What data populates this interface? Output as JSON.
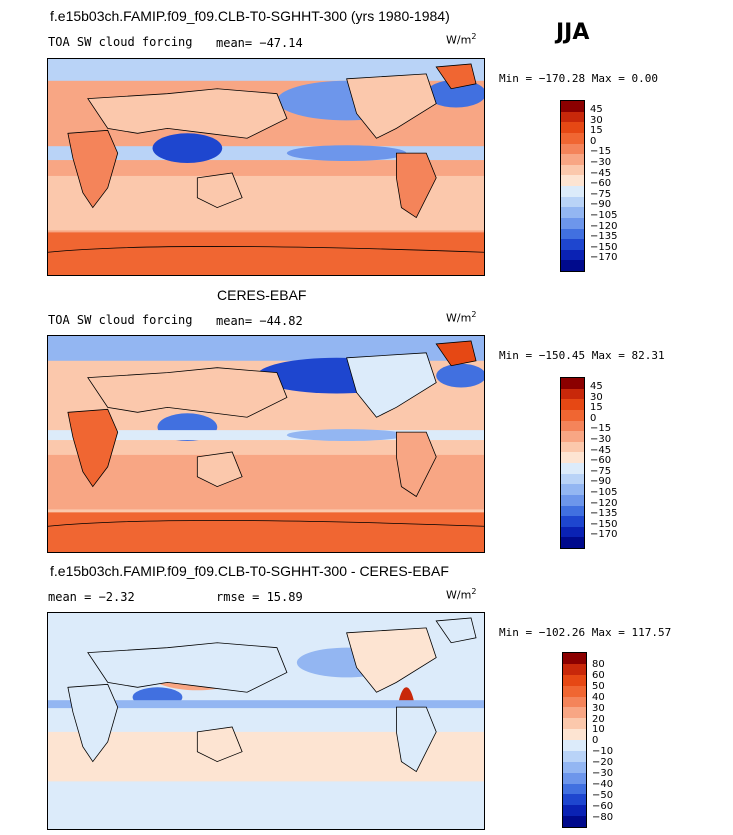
{
  "season_label": "JJA",
  "panels": [
    {
      "title": "f.e15b03ch.FAMIP.f09_f09.CLB-T0-SGHHT-300 (yrs 1980-1984)",
      "left_label": "TOA SW cloud forcing",
      "stat_label": "mean= −47.14",
      "units": "W/m",
      "units_exp": "2",
      "minmax": "Min = −170.28 Max =   0.00",
      "colorbar_labels": [
        "45",
        "30",
        "15",
        "0",
        "−15",
        "−30",
        "−45",
        "−60",
        "−75",
        "−90",
        "−105",
        "−120",
        "−135",
        "−150",
        "−170"
      ]
    },
    {
      "title": "CERES-EBAF",
      "left_label": "TOA SW cloud forcing",
      "stat_label": "mean= −44.82",
      "units": "W/m",
      "units_exp": "2",
      "minmax": "Min = −150.45 Max =  82.31",
      "colorbar_labels": [
        "45",
        "30",
        "15",
        "0",
        "−15",
        "−30",
        "−45",
        "−60",
        "−75",
        "−90",
        "−105",
        "−120",
        "−135",
        "−150",
        "−170"
      ]
    },
    {
      "title": "f.e15b03ch.FAMIP.f09_f09.CLB-T0-SGHHT-300 - CERES-EBAF",
      "left_label": "mean =   −2.32",
      "stat_label": "rmse =   15.89",
      "units": "W/m",
      "units_exp": "2",
      "minmax": "Min = −102.26 Max = 117.57",
      "colorbar_labels": [
        "80",
        "60",
        "50",
        "40",
        "30",
        "20",
        "10",
        "0",
        "−10",
        "−20",
        "−30",
        "−40",
        "−50",
        "−60",
        "−80"
      ]
    }
  ],
  "colors": {
    "scale": [
      "#8b0000",
      "#c8280a",
      "#e64814",
      "#f06632",
      "#f4845a",
      "#f8a684",
      "#fbc8ac",
      "#fde4d2",
      "#dcebfa",
      "#b9d3f7",
      "#93b6f2",
      "#6d96eb",
      "#4170e0",
      "#1e46cf",
      "#0a22b4",
      "#000a8c"
    ],
    "ocean_base_1": "#f8a684",
    "ocean_base_2": "#fbc8ac",
    "ocean_base_3": "#dcebfa",
    "southern_band": "#f06632",
    "coast": "#000000"
  },
  "chart_data": [
    {
      "type": "heatmap",
      "title": "f.e15b03ch.FAMIP.f09_f09.CLB-T0-SGHHT-300 (yrs 1980-1984)",
      "variable": "TOA SW cloud forcing",
      "units": "W/m^2",
      "mean": -47.14,
      "min": -170.28,
      "max": 0.0,
      "contour_levels": [
        -170,
        -150,
        -135,
        -120,
        -105,
        -90,
        -75,
        -60,
        -45,
        -30,
        -15,
        0,
        15,
        30,
        45
      ]
    },
    {
      "type": "heatmap",
      "title": "CERES-EBAF",
      "variable": "TOA SW cloud forcing",
      "units": "W/m^2",
      "mean": -44.82,
      "min": -150.45,
      "max": 82.31,
      "contour_levels": [
        -170,
        -150,
        -135,
        -120,
        -105,
        -90,
        -75,
        -60,
        -45,
        -30,
        -15,
        0,
        15,
        30,
        45
      ]
    },
    {
      "type": "heatmap",
      "title": "f.e15b03ch.FAMIP.f09_f09.CLB-T0-SGHHT-300 - CERES-EBAF",
      "units": "W/m^2",
      "mean": -2.32,
      "rmse": 15.89,
      "min": -102.26,
      "max": 117.57,
      "contour_levels": [
        -80,
        -60,
        -50,
        -40,
        -30,
        -20,
        -10,
        0,
        10,
        20,
        30,
        40,
        50,
        60,
        80
      ]
    }
  ]
}
